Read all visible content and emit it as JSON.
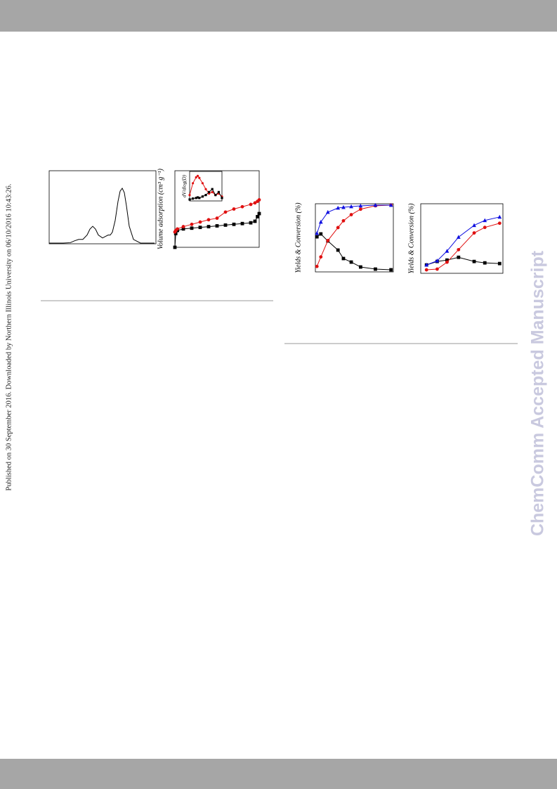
{
  "publication_note": "Published on 30 September 2016. Downloaded by Northern Illinois University on 06/10/2016 10:43:26.",
  "watermark": "ChemComm Accepted Manuscript",
  "chart_data": [
    {
      "type": "line",
      "xlim": [
        0,
        152
      ],
      "ylim": [
        0,
        100
      ],
      "x": [
        0,
        20,
        30,
        36,
        42,
        48,
        54,
        58,
        62,
        66,
        70,
        76,
        80,
        84,
        87,
        90,
        94,
        98,
        101,
        104,
        107,
        110,
        114,
        120,
        130,
        150
      ],
      "series": [
        {
          "color": "#000000",
          "marker": "none",
          "values": [
            1,
            1,
            1.5,
            4,
            6,
            6,
            12,
            20,
            24,
            20,
            12,
            8,
            10,
            12,
            12,
            16,
            32,
            58,
            72,
            76,
            70,
            52,
            24,
            6,
            1,
            1
          ]
        }
      ]
    },
    {
      "type": "line",
      "y_label": "Volume adsorption (cm³ g⁻¹)",
      "xlim": [
        0,
        100
      ],
      "ylim": [
        0,
        100
      ],
      "x": [
        0,
        1,
        3,
        10,
        20,
        30,
        40,
        50,
        60,
        70,
        80,
        90,
        95,
        98,
        100
      ],
      "series": [
        {
          "color": "#000000",
          "marker": "square",
          "values": [
            0,
            18,
            22,
            24,
            25,
            26,
            27,
            28,
            29,
            30,
            31,
            32,
            34,
            40,
            44
          ]
        },
        {
          "color": "#e01010",
          "marker": "circle",
          "values": [
            20,
            22,
            24,
            27,
            30,
            33,
            36,
            38,
            46,
            50,
            53,
            56,
            58,
            60,
            62
          ]
        }
      ]
    },
    {
      "type": "line",
      "inset": true,
      "y_label": "dV/dlog(D)",
      "xlim": [
        0,
        100
      ],
      "ylim": [
        0,
        100
      ],
      "x": [
        0,
        10,
        20,
        25,
        30,
        40,
        50,
        60,
        70,
        80,
        90,
        100
      ],
      "series": [
        {
          "color": "#e01010",
          "marker": "circle",
          "values": [
            20,
            60,
            80,
            85,
            78,
            60,
            40,
            25,
            30,
            20,
            25,
            15
          ]
        },
        {
          "color": "#000000",
          "marker": "square",
          "values": [
            5,
            8,
            10,
            12,
            10,
            15,
            20,
            30,
            40,
            20,
            30,
            10
          ]
        }
      ]
    },
    {
      "type": "line",
      "y_label": "Yields & Conversion (%)",
      "xlim": [
        0,
        100
      ],
      "ylim": [
        0,
        100
      ],
      "x": [
        2,
        7,
        16,
        29,
        36,
        46,
        58,
        77,
        97
      ],
      "series": [
        {
          "color": "#000000",
          "marker": "square",
          "values": [
            51.5,
            55.7,
            45.4,
            32,
            19.6,
            14.4,
            7.2,
            4.1,
            3.1
          ]
        },
        {
          "color": "#e01010",
          "marker": "circle",
          "values": [
            8,
            22,
            46,
            65,
            75,
            84,
            92,
            97,
            98
          ]
        },
        {
          "color": "#1010e0",
          "marker": "triangle",
          "values": [
            56.7,
            73.2,
            87.6,
            93.8,
            94.8,
            95.9,
            96.9,
            97.9,
            97.9
          ]
        }
      ]
    },
    {
      "type": "line",
      "y_label": "Yields & Conversion (%)",
      "xlim": [
        0,
        100
      ],
      "ylim": [
        0,
        100
      ],
      "x": [
        7,
        20,
        32,
        46,
        65,
        78,
        96
      ],
      "series": [
        {
          "color": "#000000",
          "marker": "square",
          "values": [
            12,
            17,
            19,
            23,
            17,
            15,
            14
          ]
        },
        {
          "color": "#e01010",
          "marker": "circle",
          "values": [
            5,
            6,
            16,
            34,
            58,
            66,
            72
          ]
        },
        {
          "color": "#1010e0",
          "marker": "triangle",
          "values": [
            12,
            18,
            32,
            52,
            69,
            76,
            81
          ]
        }
      ]
    }
  ]
}
